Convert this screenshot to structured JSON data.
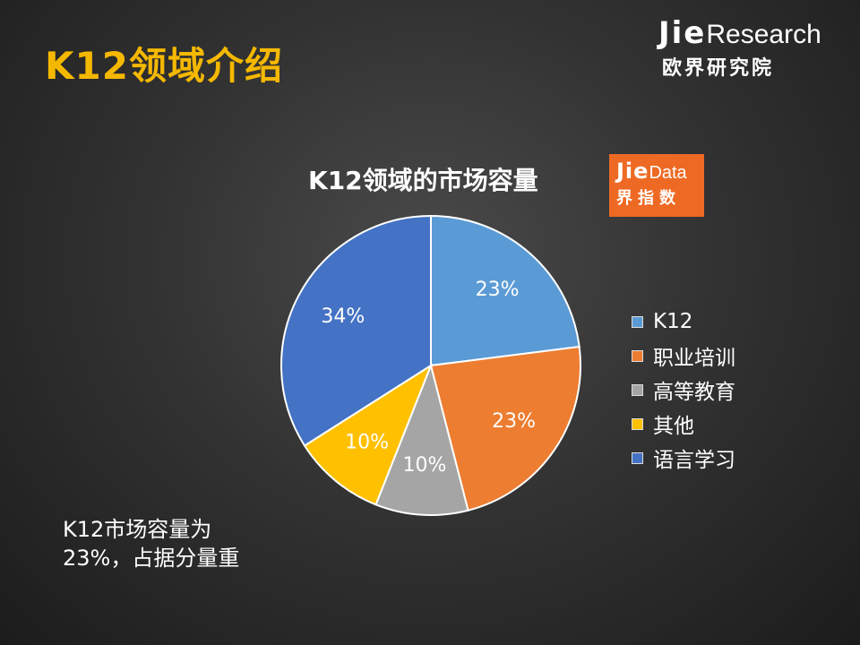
{
  "slide": {
    "title": "K12领域介绍",
    "brand": {
      "jie": "Jie",
      "research": "Research",
      "subtitle": "欧界研究院"
    },
    "logo": {
      "jie": "Jie",
      "data": "Data",
      "subtitle": "界指数",
      "color": "#ee6a24"
    },
    "note": {
      "line1": "K12市场容量为",
      "line2": "23%，占据分量重"
    }
  },
  "chart_data": {
    "type": "pie",
    "title": "K12领域的市场容量",
    "legend_position": "right",
    "slices": [
      {
        "name": "K12",
        "value": 23,
        "label": "23%",
        "color": "#5b9bd5"
      },
      {
        "name": "职业培训",
        "value": 23,
        "label": "23%",
        "color": "#ed7d31"
      },
      {
        "name": "高等教育",
        "value": 10,
        "label": "10%",
        "color": "#a5a5a5"
      },
      {
        "name": "其他",
        "value": 10,
        "label": "10%",
        "color": "#ffc000"
      },
      {
        "name": "语言学习",
        "value": 34,
        "label": "34%",
        "color": "#4472c4"
      }
    ]
  }
}
